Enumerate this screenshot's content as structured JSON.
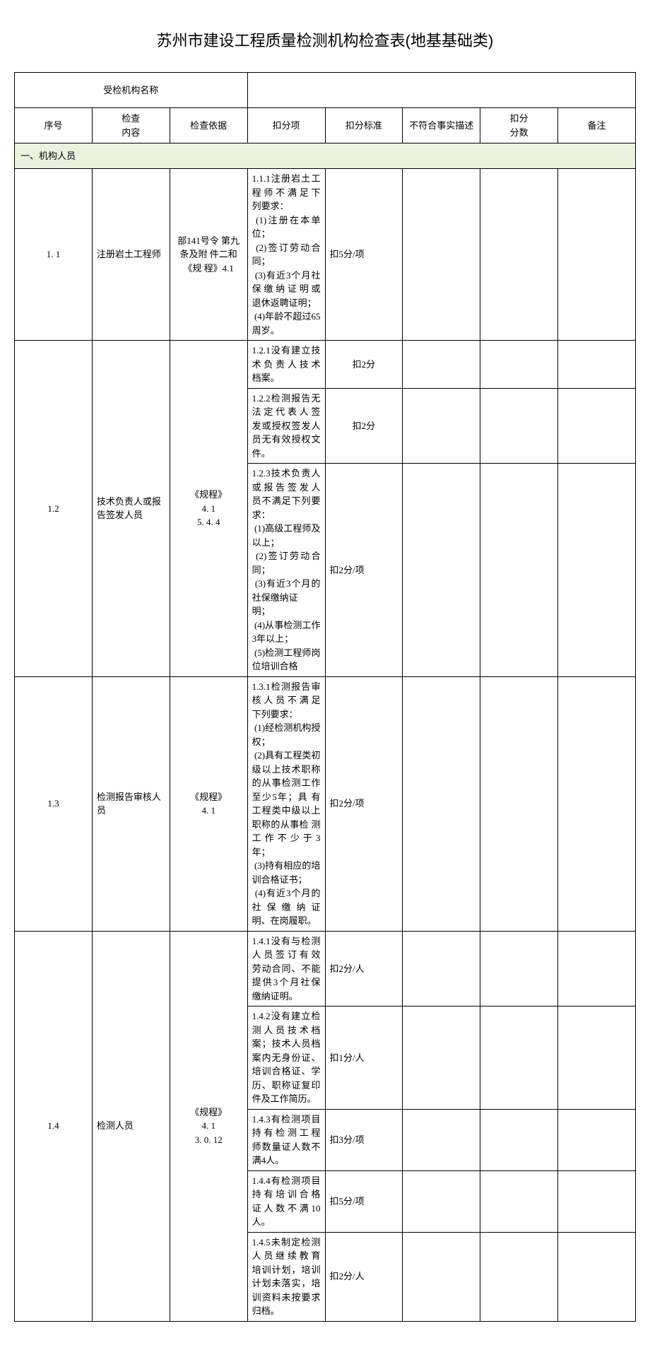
{
  "title": "苏州市建设工程质量检测机构检查表(地基基础类)",
  "orgLabel": "受检机构名称",
  "headers": {
    "seq": "序号",
    "content": "检查\n内容",
    "basis": "检查依据",
    "deductItem": "扣分项",
    "standard": "扣分标准",
    "desc": "不符合事实描述",
    "score": "扣分\n分数",
    "remark": "备注"
  },
  "section1": "一、机构人员",
  "rows": [
    {
      "seq": "1. 1",
      "content": "注册岩土工程师",
      "basis": "部141号令 第九条及附 件二和《规 程》4.1",
      "items": [
        {
          "text": "1.1.1注册岩土工程师不满足下　列要求：\n (1)注册在本单位；\n (2)签订劳动合同；\n (3)有近3个月社保缴纳证明或　退休返聘证明；\n (4)年龄不超过65周岁。",
          "std": "扣5分/项",
          "h": "h110"
        }
      ]
    },
    {
      "seq": "1.2",
      "content": "技术负责人或报告签发人员",
      "basis": "《规程》\n4. 1\n5. 4. 4",
      "items": [
        {
          "text": "1.2.1没有建立技术负责人技术　档案。",
          "std": "扣2分",
          "h": "h50"
        },
        {
          "text": "1.2.2检测报告无法定代表人签　发或授权签发人员无有效授权文 件。",
          "std": "扣2分",
          "h": "h50"
        },
        {
          "text": "1.2.3技术负责人或报告签发人　员不满足下列要求：\n (1)高级工程师及以上；\n (2)签订劳动合同；\n (3)有近3个月的社保缴纳证\n明；\n (4)从事检测工作3年以上；\n (5)检测工程师岗位培训合格",
          "std": "扣2分/项",
          "h": "h150"
        }
      ]
    },
    {
      "seq": "1.3",
      "content": "检测报告审核人员",
      "basis": "《规程》\n4. 1",
      "items": [
        {
          "text": "1.3.1检测报告审核人员不满足　下列要求：\n (1)经检测机构授权；\n (2)具有工程类初级以上技术职称的从事检测工作至少5年；具 有工程类中级以上职称的从事检 测工作不少于3年；\n (3)持有相应的培训合格证书；\n (4)有近3个月的社保缴纳证　明、在岗履职。",
          "std": "扣2分/项",
          "h": "h200"
        }
      ]
    },
    {
      "seq": "1.4",
      "content": "检测人员",
      "basis": "《规程》\n4. 1\n3. 0. 12",
      "items": [
        {
          "text": "1.4.1没有与检测人员签订有效　劳动合同、不能提供3个月社保 缴纳证明。",
          "std": "扣2分/人",
          "h": "h65"
        },
        {
          "text": "1.4.2没有建立检测人员技术档 案；技术人员档案内无身份证、 培训合格证、学历、职称证复印 件及工作简历。",
          "std": "扣1分/人",
          "h": "h80"
        },
        {
          "text": "1.4.3有检测项目持有检测工程　师数量证人数不满4人。",
          "std": "扣3分/项",
          "h": "h55"
        },
        {
          "text": "1.4.4有检测项目持有培训合格　证人数不满10人。",
          "std": "扣5分/项",
          "h": "h55"
        },
        {
          "text": "1.4.5未制定检测人员继续教育　培训计划，培训计划未落实，培 训资料未按要求归档。",
          "std": "扣2分/人",
          "h": "h65"
        }
      ]
    }
  ]
}
